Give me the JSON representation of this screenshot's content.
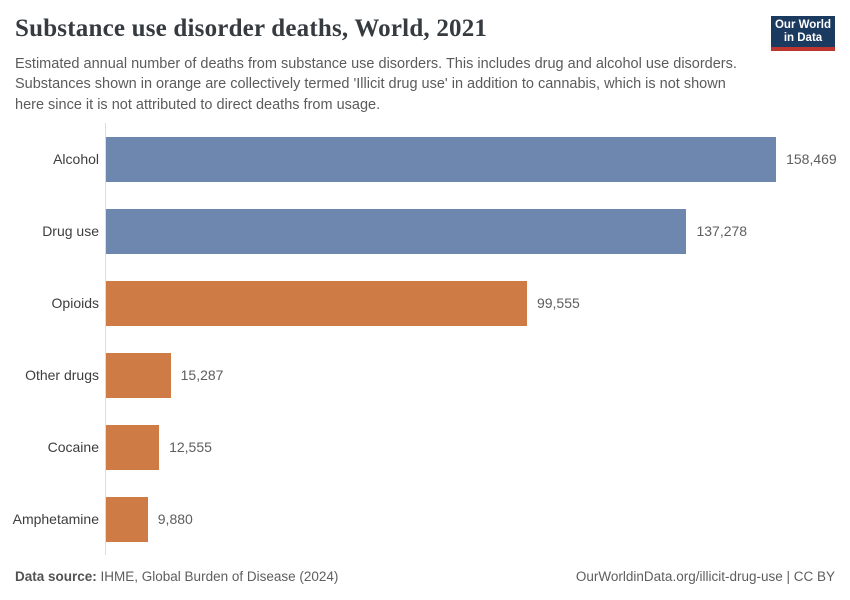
{
  "header": {
    "title": "Substance use disorder deaths, World, 2021",
    "subtitle": "Estimated annual number of deaths from substance use disorders. This includes drug and alcohol use disorders. Substances shown in orange are collectively termed 'Illicit drug use' in addition to cannabis, which is not shown here since it is not attributed to direct deaths from usage.",
    "logo": {
      "line1": "Our World",
      "line2": "in Data",
      "background_color": "#1b3a60",
      "stripe_color": "#bc362f"
    }
  },
  "chart_data": {
    "type": "bar",
    "orientation": "horizontal",
    "title": "Substance use disorder deaths, World, 2021",
    "categories": [
      "Alcohol",
      "Drug use",
      "Opioids",
      "Other drugs",
      "Cocaine",
      "Amphetamine"
    ],
    "values": [
      158469,
      137278,
      99555,
      15287,
      12555,
      9880
    ],
    "value_labels": [
      "158,469",
      "137,278",
      "99,555",
      "15,287",
      "12,555",
      "9,880"
    ],
    "bar_colors": [
      "#6e87ae",
      "#6e87ae",
      "#ce7b45",
      "#ce7b45",
      "#ce7b45",
      "#ce7b45"
    ],
    "color_meaning": {
      "#6e87ae": "alcohol and total drug use disorders",
      "#ce7b45": "illicit drug use components"
    },
    "xlim": [
      0,
      175000
    ],
    "grid": false,
    "legend": "none",
    "value_label_position": "right-of-bar"
  },
  "footer": {
    "data_source_label": "Data source:",
    "data_source_value": " IHME, Global Burden of Disease (2024)",
    "credit": "OurWorldinData.org/illicit-drug-use | CC BY"
  }
}
